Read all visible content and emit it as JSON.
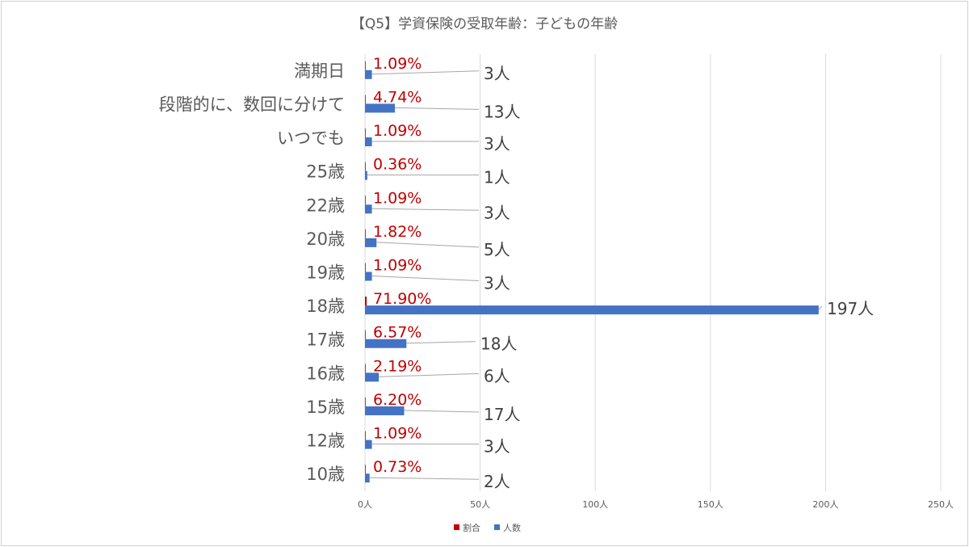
{
  "chart_data": {
    "type": "bar",
    "orientation": "horizontal",
    "title": "【Q5】学資保険の受取年齢：子どもの年齢",
    "categories": [
      "満期日",
      "段階的に、数回に分けて",
      "いつでも",
      "25歳",
      "22歳",
      "20歳",
      "19歳",
      "18歳",
      "17歳",
      "16歳",
      "15歳",
      "12歳",
      "10歳"
    ],
    "series": [
      {
        "name": "割合",
        "color": "#c00000",
        "values": [
          1.09,
          4.74,
          1.09,
          0.36,
          1.09,
          1.82,
          1.09,
          71.9,
          6.57,
          2.19,
          6.2,
          1.09,
          0.73
        ],
        "labels": [
          "1.09%",
          "4.74%",
          "1.09%",
          "0.36%",
          "1.09%",
          "1.82%",
          "1.09%",
          "71.90%",
          "6.57%",
          "2.19%",
          "6.20%",
          "1.09%",
          "0.73%"
        ]
      },
      {
        "name": "人数",
        "color": "#4472c4",
        "values": [
          3,
          13,
          3,
          1,
          3,
          5,
          3,
          197,
          18,
          6,
          17,
          3,
          2
        ],
        "labels": [
          "3人",
          "13人",
          "3人",
          "1人",
          "3人",
          "5人",
          "3人",
          "197人",
          "18人",
          "6人",
          "17人",
          "3人",
          "2人"
        ]
      }
    ],
    "xlim": [
      0,
      250
    ],
    "xticks": [
      "0人",
      "50人",
      "100人",
      "150人",
      "200人",
      "250人"
    ],
    "grid": "vertical",
    "legend": "bottom"
  }
}
